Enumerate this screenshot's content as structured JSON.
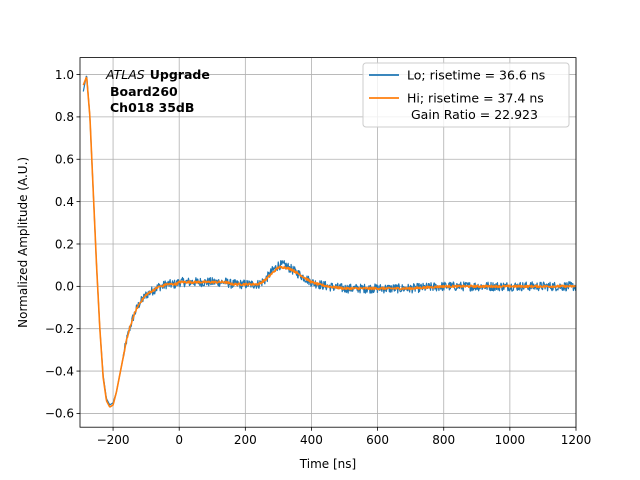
{
  "chart_data": {
    "type": "line",
    "title": "",
    "xlabel": "Time [ns]",
    "ylabel": "Normalized Amplitude (A.U.)",
    "xlim": [
      -300,
      1200
    ],
    "ylim": [
      -0.665,
      1.08
    ],
    "x_ticks": [
      -200,
      0,
      200,
      400,
      600,
      800,
      1000,
      1200
    ],
    "x_tick_labels": [
      "−200",
      "0",
      "200",
      "400",
      "600",
      "800",
      "1000",
      "1200"
    ],
    "y_ticks": [
      -0.6,
      -0.4,
      -0.2,
      0.0,
      0.2,
      0.4,
      0.6,
      0.8,
      1.0
    ],
    "y_tick_labels": [
      "−0.6",
      "−0.4",
      "−0.2",
      "0.0",
      "0.2",
      "0.4",
      "0.6",
      "0.8",
      "1.0"
    ],
    "grid": true,
    "legend_position": "top-right",
    "annotation": {
      "atlas": "ATLAS",
      "upgrade": "Upgrade",
      "board": "Board260",
      "channel": "Ch018 35dB"
    },
    "legend": {
      "gain_ratio": "Gain Ratio = 22.923"
    },
    "series": [
      {
        "name": "Lo; risetime = 36.6 ns",
        "color": "#1f77b4",
        "noise": 0.022,
        "x": [
          -290,
          -280,
          -270,
          -260,
          -250,
          -240,
          -230,
          -220,
          -210,
          -200,
          -190,
          -180,
          -170,
          -160,
          -150,
          -140,
          -130,
          -120,
          -110,
          -100,
          -90,
          -80,
          -70,
          -60,
          -50,
          -40,
          -30,
          -20,
          -10,
          0,
          20,
          40,
          60,
          80,
          100,
          120,
          140,
          160,
          180,
          200,
          220,
          240,
          260,
          280,
          300,
          320,
          340,
          360,
          380,
          400,
          420,
          450,
          500,
          550,
          600,
          700,
          800,
          900,
          1000,
          1100,
          1200
        ],
        "y": [
          0.92,
          1.0,
          0.8,
          0.45,
          0.1,
          -0.2,
          -0.42,
          -0.53,
          -0.56,
          -0.55,
          -0.5,
          -0.42,
          -0.34,
          -0.26,
          -0.2,
          -0.15,
          -0.11,
          -0.08,
          -0.06,
          -0.04,
          -0.03,
          -0.02,
          -0.01,
          0.0,
          0.0,
          0.01,
          0.01,
          0.01,
          0.01,
          0.02,
          0.02,
          0.02,
          0.02,
          0.02,
          0.02,
          0.02,
          0.02,
          0.01,
          0.01,
          0.01,
          0.01,
          0.01,
          0.03,
          0.07,
          0.1,
          0.1,
          0.08,
          0.06,
          0.04,
          0.02,
          0.01,
          0.0,
          -0.01,
          -0.01,
          -0.01,
          -0.01,
          0.0,
          0.0,
          0.0,
          0.0,
          0.0
        ]
      },
      {
        "name": "Hi; risetime = 37.4 ns",
        "color": "#ff7f0e",
        "noise": 0.005,
        "x": [
          -290,
          -280,
          -270,
          -260,
          -250,
          -240,
          -230,
          -220,
          -210,
          -200,
          -190,
          -180,
          -170,
          -160,
          -150,
          -140,
          -130,
          -120,
          -110,
          -100,
          -90,
          -80,
          -70,
          -60,
          -50,
          -40,
          -30,
          -20,
          -10,
          0,
          20,
          40,
          60,
          80,
          100,
          120,
          140,
          160,
          180,
          200,
          220,
          240,
          260,
          280,
          300,
          320,
          340,
          360,
          380,
          400,
          420,
          450,
          500,
          550,
          600,
          700,
          800,
          900,
          1000,
          1100,
          1200
        ],
        "y": [
          0.95,
          0.99,
          0.8,
          0.45,
          0.1,
          -0.2,
          -0.43,
          -0.54,
          -0.57,
          -0.56,
          -0.5,
          -0.42,
          -0.34,
          -0.26,
          -0.2,
          -0.15,
          -0.11,
          -0.08,
          -0.06,
          -0.04,
          -0.03,
          -0.02,
          -0.01,
          0.0,
          0.0,
          0.01,
          0.01,
          0.01,
          0.01,
          0.02,
          0.02,
          0.02,
          0.02,
          0.02,
          0.02,
          0.02,
          0.02,
          0.01,
          0.01,
          0.01,
          0.01,
          0.01,
          0.03,
          0.06,
          0.09,
          0.09,
          0.08,
          0.06,
          0.04,
          0.02,
          0.01,
          0.0,
          -0.01,
          -0.01,
          -0.01,
          -0.01,
          0.0,
          0.0,
          0.0,
          0.0,
          0.0
        ]
      }
    ]
  }
}
